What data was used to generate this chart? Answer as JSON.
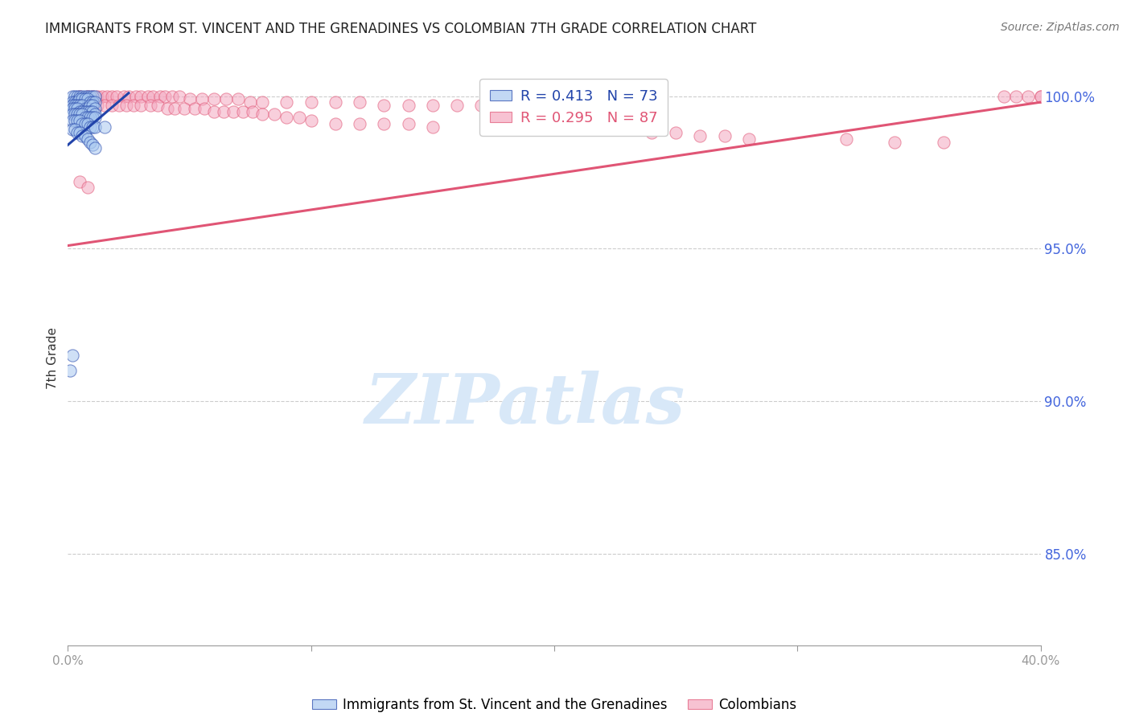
{
  "title": "IMMIGRANTS FROM ST. VINCENT AND THE GRENADINES VS COLOMBIAN 7TH GRADE CORRELATION CHART",
  "source": "Source: ZipAtlas.com",
  "ylabel": "7th Grade",
  "right_yticks": [
    1.0,
    0.95,
    0.9,
    0.85
  ],
  "right_ytick_labels": [
    "100.0%",
    "95.0%",
    "90.0%",
    "85.0%"
  ],
  "xlim": [
    0.0,
    0.4
  ],
  "ylim": [
    0.82,
    1.008
  ],
  "blue_R": 0.413,
  "blue_N": 73,
  "pink_R": 0.295,
  "pink_N": 87,
  "blue_color": "#A8C8F0",
  "pink_color": "#F4A8C0",
  "blue_line_color": "#2244AA",
  "pink_line_color": "#E05575",
  "legend_label_blue": "Immigrants from St. Vincent and the Grenadines",
  "legend_label_pink": "Colombians",
  "watermark": "ZIPatlas",
  "blue_scatter_x": [
    0.002,
    0.003,
    0.004,
    0.005,
    0.006,
    0.007,
    0.008,
    0.009,
    0.01,
    0.011,
    0.002,
    0.003,
    0.004,
    0.005,
    0.006,
    0.007,
    0.008,
    0.009,
    0.01,
    0.011,
    0.002,
    0.003,
    0.004,
    0.005,
    0.006,
    0.007,
    0.008,
    0.009,
    0.01,
    0.011,
    0.002,
    0.003,
    0.004,
    0.005,
    0.006,
    0.007,
    0.008,
    0.009,
    0.01,
    0.011,
    0.002,
    0.003,
    0.004,
    0.005,
    0.006,
    0.007,
    0.008,
    0.009,
    0.01,
    0.011,
    0.002,
    0.003,
    0.004,
    0.005,
    0.006,
    0.007,
    0.008,
    0.009,
    0.01,
    0.011,
    0.002,
    0.003,
    0.004,
    0.005,
    0.006,
    0.007,
    0.008,
    0.009,
    0.01,
    0.011,
    0.001,
    0.002,
    0.015
  ],
  "blue_scatter_y": [
    1.0,
    1.0,
    1.0,
    1.0,
    1.0,
    1.0,
    1.0,
    1.0,
    1.0,
    1.0,
    0.998,
    0.998,
    0.998,
    0.999,
    0.999,
    0.999,
    0.999,
    0.998,
    0.998,
    0.998,
    0.997,
    0.997,
    0.997,
    0.997,
    0.997,
    0.996,
    0.996,
    0.997,
    0.997,
    0.996,
    0.996,
    0.996,
    0.996,
    0.995,
    0.995,
    0.995,
    0.995,
    0.995,
    0.995,
    0.994,
    0.994,
    0.994,
    0.994,
    0.994,
    0.994,
    0.993,
    0.993,
    0.993,
    0.993,
    0.993,
    0.992,
    0.992,
    0.992,
    0.992,
    0.991,
    0.991,
    0.991,
    0.99,
    0.99,
    0.99,
    0.989,
    0.989,
    0.988,
    0.988,
    0.987,
    0.987,
    0.986,
    0.985,
    0.984,
    0.983,
    0.91,
    0.915,
    0.99
  ],
  "pink_scatter_x": [
    0.005,
    0.008,
    0.01,
    0.012,
    0.014,
    0.016,
    0.018,
    0.02,
    0.023,
    0.025,
    0.028,
    0.03,
    0.033,
    0.035,
    0.038,
    0.04,
    0.043,
    0.046,
    0.05,
    0.055,
    0.06,
    0.065,
    0.07,
    0.075,
    0.08,
    0.09,
    0.1,
    0.11,
    0.12,
    0.13,
    0.14,
    0.15,
    0.16,
    0.17,
    0.18,
    0.19,
    0.2,
    0.003,
    0.006,
    0.009,
    0.012,
    0.015,
    0.018,
    0.021,
    0.024,
    0.027,
    0.03,
    0.034,
    0.037,
    0.041,
    0.044,
    0.048,
    0.052,
    0.056,
    0.06,
    0.064,
    0.068,
    0.072,
    0.076,
    0.08,
    0.085,
    0.09,
    0.095,
    0.1,
    0.11,
    0.12,
    0.13,
    0.14,
    0.15,
    0.21,
    0.22,
    0.23,
    0.24,
    0.25,
    0.26,
    0.27,
    0.28,
    0.32,
    0.34,
    0.36,
    0.005,
    0.008,
    0.385,
    0.39,
    0.395,
    0.4,
    0.4
  ],
  "pink_scatter_y": [
    1.0,
    1.0,
    1.0,
    1.0,
    1.0,
    1.0,
    1.0,
    1.0,
    1.0,
    1.0,
    1.0,
    1.0,
    1.0,
    1.0,
    1.0,
    1.0,
    1.0,
    1.0,
    0.999,
    0.999,
    0.999,
    0.999,
    0.999,
    0.998,
    0.998,
    0.998,
    0.998,
    0.998,
    0.998,
    0.997,
    0.997,
    0.997,
    0.997,
    0.997,
    0.997,
    0.997,
    0.997,
    0.997,
    0.997,
    0.997,
    0.997,
    0.997,
    0.997,
    0.997,
    0.997,
    0.997,
    0.997,
    0.997,
    0.997,
    0.996,
    0.996,
    0.996,
    0.996,
    0.996,
    0.995,
    0.995,
    0.995,
    0.995,
    0.995,
    0.994,
    0.994,
    0.993,
    0.993,
    0.992,
    0.991,
    0.991,
    0.991,
    0.991,
    0.99,
    0.989,
    0.989,
    0.989,
    0.988,
    0.988,
    0.987,
    0.987,
    0.986,
    0.986,
    0.985,
    0.985,
    0.972,
    0.97,
    1.0,
    1.0,
    1.0,
    1.0,
    1.0
  ],
  "blue_trendline_x": [
    0.0,
    0.025
  ],
  "blue_trendline_y": [
    0.984,
    1.001
  ],
  "pink_trendline_x": [
    0.0,
    0.4
  ],
  "pink_trendline_y": [
    0.951,
    0.998
  ],
  "title_color": "#222222",
  "source_color": "#777777",
  "axis_color": "#999999",
  "right_axis_color": "#4466DD",
  "grid_color": "#CCCCCC",
  "watermark_color": "#D8E8F8"
}
